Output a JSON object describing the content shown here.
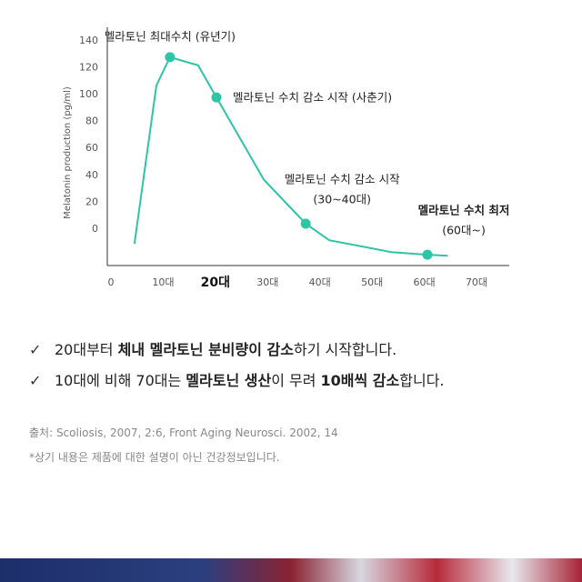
{
  "chart_data": {
    "type": "line",
    "y_label": "Melatonin production (pg/ml)",
    "color": "#2ec4a6",
    "x": [
      4.5,
      8.7,
      11.3,
      16.7,
      20.2,
      29.3,
      37.3,
      41.8,
      53.7,
      60.6,
      64.5
    ],
    "values": [
      -10.9,
      106.7,
      127.8,
      121.7,
      97.9,
      36.7,
      4.1,
      -8.2,
      -17,
      -19,
      -19.7
    ],
    "xlim": [
      0,
      70
    ],
    "ylim": [
      -27,
      150
    ],
    "xticks": [
      0,
      {
        "value": 10,
        "label": "10대"
      },
      {
        "value": 20,
        "label": "20대",
        "bold": true
      },
      {
        "value": 30,
        "label": "30대"
      },
      {
        "value": 40,
        "label": "40대"
      },
      {
        "value": 50,
        "label": "50대"
      },
      {
        "value": 60,
        "label": "60대"
      },
      {
        "value": 70,
        "label": "70대"
      }
    ],
    "yticks": [
      0,
      20,
      40,
      60,
      80,
      100,
      120,
      140
    ],
    "annotations": [
      {
        "at": 2,
        "lines": [
          "멜라토닌 최대수치 (유년기)"
        ]
      },
      {
        "at": 4,
        "lines": [
          "멜라토닌 수치 감소 시작 (사춘기)"
        ]
      },
      {
        "at": 6,
        "lines": [
          "멜라토닌 수치 감소 시작",
          "(30~40대)"
        ]
      },
      {
        "at": 9,
        "lines": [
          "멜라토닌 수치 최저",
          "(60대~)"
        ],
        "bold": true
      }
    ]
  },
  "bullets": [
    [
      {
        "t": "20대부터 "
      },
      {
        "t": "체내 멜라토닌 분비량이 감소",
        "b": true
      },
      {
        "t": "하기 시작합니다."
      }
    ],
    [
      {
        "t": "10대에 비해 70대는 "
      },
      {
        "t": "멜라토닌 생산",
        "b": true
      },
      {
        "t": "이 무려 "
      },
      {
        "t": "10배씩 감소",
        "b": true
      },
      {
        "t": "합니다."
      }
    ]
  ],
  "check": "✓",
  "source": "출처: Scoliosis, 2007, 2:6, Front Aging Neurosci. 2002, 14",
  "disclaimer": "*상기 내용은 제품에 대한 설명이 아닌 건강정보입니다."
}
